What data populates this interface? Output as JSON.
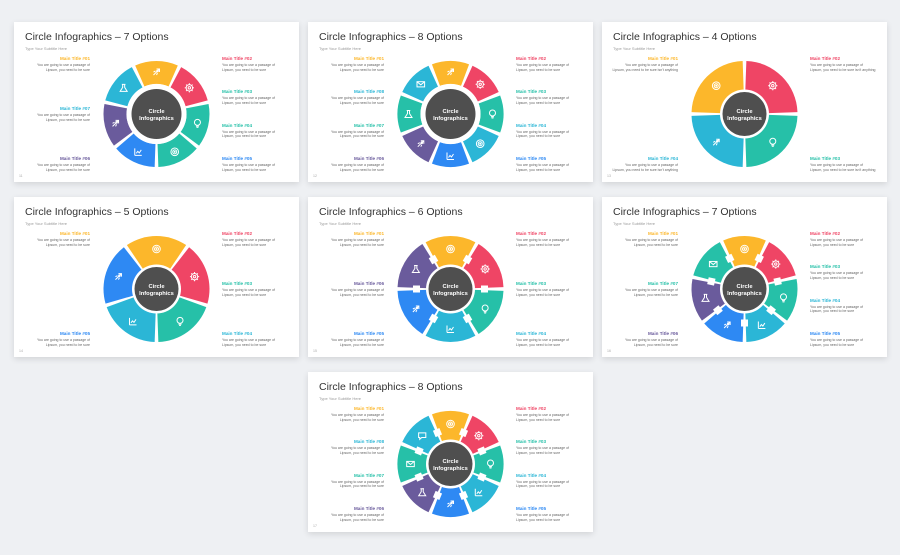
{
  "colors": {
    "yellow": "#fcb72b",
    "red": "#ef4565",
    "teal": "#26c0a8",
    "cyan": "#2bb6d6",
    "blue": "#2e89f3",
    "purple": "#6a5b9c",
    "center": "#4f4f4f"
  },
  "slides": [
    {
      "title": "Circle Infographics – 7 Options",
      "subtitle": "Type Your Subtitle Here",
      "page": "11",
      "center_label": "Circle\nInfographics",
      "style": "donut",
      "segments": [
        "yellow",
        "red",
        "teal",
        "teal",
        "blue",
        "purple",
        "cyan"
      ],
      "icons": [
        "rocket-icon",
        "gear-icon",
        "lightbulb-icon",
        "target-icon",
        "chart-icon",
        "rocket-icon",
        "flask-icon"
      ],
      "labels": [
        {
          "side": "left",
          "title": "Main Title #01",
          "color": "yellow",
          "body": "You are going to use a passage of Lipsum, you need to be sure"
        },
        {
          "side": "left",
          "title": "Main Title #07",
          "color": "cyan",
          "body": "You are going to use a passage of Lipsum, you need to be sure"
        },
        {
          "side": "left",
          "title": "Main Title #06",
          "color": "purple",
          "body": "You are going to use a passage of Lipsum, you need to be sure"
        },
        {
          "side": "right",
          "title": "Main Title #02",
          "color": "red",
          "body": "You are going to use a passage of Lipsum, you need to be sure"
        },
        {
          "side": "right",
          "title": "Main Title #03",
          "color": "teal",
          "body": "You are going to use a passage of Lipsum, you need to be sure"
        },
        {
          "side": "right",
          "title": "Main Title #04",
          "color": "teal",
          "body": "You are going to use a passage of Lipsum, you need to be sure"
        },
        {
          "side": "right",
          "title": "Main Title #05",
          "color": "blue",
          "body": "You are going to use a passage of Lipsum, you need to be sure"
        }
      ]
    },
    {
      "title": "Circle Infographics – 8 Options",
      "subtitle": "Type Your Subtitle Here",
      "page": "12",
      "center_label": "Circle\nInfographics",
      "style": "donut",
      "segments": [
        "yellow",
        "red",
        "teal",
        "cyan",
        "blue",
        "purple",
        "teal",
        "cyan"
      ],
      "icons": [
        "rocket-icon",
        "gear-icon",
        "lightbulb-icon",
        "target-icon",
        "chart-icon",
        "rocket-icon",
        "flask-icon",
        "mail-icon"
      ],
      "labels": [
        {
          "side": "left",
          "title": "Main Title #01",
          "color": "yellow",
          "body": "You are going to use a passage of Lipsum, you need to be sure"
        },
        {
          "side": "left",
          "title": "Main Title #08",
          "color": "cyan",
          "body": "You are going to use a passage of Lipsum, you need to be sure"
        },
        {
          "side": "left",
          "title": "Main Title #07",
          "color": "teal",
          "body": "You are going to use a passage of Lipsum, you need to be sure"
        },
        {
          "side": "left",
          "title": "Main Title #06",
          "color": "purple",
          "body": "You are going to use a passage of Lipsum, you need to be sure"
        },
        {
          "side": "right",
          "title": "Main Title #02",
          "color": "red",
          "body": "You are going to use a passage of Lipsum, you need to be sure"
        },
        {
          "side": "right",
          "title": "Main Title #03",
          "color": "teal",
          "body": "You are going to use a passage of Lipsum, you need to be sure"
        },
        {
          "side": "right",
          "title": "Main Title #04",
          "color": "cyan",
          "body": "You are going to use a passage of Lipsum, you need to be sure"
        },
        {
          "side": "right",
          "title": "Main Title #05",
          "color": "blue",
          "body": "You are going to use a passage of Lipsum, you need to be sure"
        }
      ]
    },
    {
      "title": "Circle Infographics – 4 Options",
      "subtitle": "Type Your Subtitle Here",
      "page": "13",
      "center_label": "Circle\nInfographics",
      "style": "pie",
      "segments": [
        "red",
        "teal",
        "cyan",
        "yellow"
      ],
      "icons": [
        "gear-icon",
        "lightbulb-icon",
        "rocket-icon",
        "target-icon"
      ],
      "labels": [
        {
          "side": "left",
          "title": "Main Title #01",
          "color": "yellow",
          "body": "You are going to use a passage of Lipsum, you need to be sure isn't anything"
        },
        {
          "side": "left",
          "title": "Main Title #04",
          "color": "cyan",
          "body": "You are going to use a passage of Lipsum, you need to be sure isn't anything"
        },
        {
          "side": "right",
          "title": "Main Title #02",
          "color": "red",
          "body": "You are going to use a passage of Lipsum, you need to be sure isn't anything"
        },
        {
          "side": "right",
          "title": "Main Title #03",
          "color": "teal",
          "body": "You are going to use a passage of Lipsum, you need to be sure isn't anything"
        }
      ]
    },
    {
      "title": "Circle Infographics – 5 Options",
      "subtitle": "Type Your Subtitle Here",
      "page": "14",
      "center_label": "Circle\nInfographics",
      "style": "pie",
      "segments": [
        "yellow",
        "red",
        "teal",
        "cyan",
        "blue"
      ],
      "icons": [
        "target-icon",
        "gear-icon",
        "lightbulb-icon",
        "chart-icon",
        "rocket-icon"
      ],
      "labels": [
        {
          "side": "left",
          "title": "Main Title #01",
          "color": "yellow",
          "body": "You are going to use a passage of Lipsum, you need to be sure"
        },
        {
          "side": "left",
          "title": "Main Title #05",
          "color": "blue",
          "body": "You are going to use a passage of Lipsum, you need to be sure"
        },
        {
          "side": "right",
          "title": "Main Title #02",
          "color": "red",
          "body": "You are going to use a passage of Lipsum, you need to be sure"
        },
        {
          "side": "right",
          "title": "Main Title #03",
          "color": "teal",
          "body": "You are going to use a passage of Lipsum, you need to be sure"
        },
        {
          "side": "right",
          "title": "Main Title #04",
          "color": "cyan",
          "body": "You are going to use a passage of Lipsum, you need to be sure"
        }
      ]
    },
    {
      "title": "Circle Infographics – 6 Options",
      "subtitle": "Type Your Subtitle Here",
      "page": "15",
      "center_label": "Circle\nInfographics",
      "style": "pie-notch",
      "segments": [
        "yellow",
        "red",
        "teal",
        "cyan",
        "blue",
        "purple"
      ],
      "icons": [
        "target-icon",
        "gear-icon",
        "lightbulb-icon",
        "chart-icon",
        "rocket-icon",
        "flask-icon"
      ],
      "labels": [
        {
          "side": "left",
          "title": "Main Title #01",
          "color": "yellow",
          "body": "You are going to use a passage of Lipsum, you need to be sure"
        },
        {
          "side": "left",
          "title": "Main Title #06",
          "color": "purple",
          "body": "You are going to use a passage of Lipsum, you need to be sure"
        },
        {
          "side": "left",
          "title": "Main Title #05",
          "color": "blue",
          "body": "You are going to use a passage of Lipsum, you need to be sure"
        },
        {
          "side": "right",
          "title": "Main Title #02",
          "color": "red",
          "body": "You are going to use a passage of Lipsum, you need to be sure"
        },
        {
          "side": "right",
          "title": "Main Title #03",
          "color": "teal",
          "body": "You are going to use a passage of Lipsum, you need to be sure"
        },
        {
          "side": "right",
          "title": "Main Title #04",
          "color": "cyan",
          "body": "You are going to use a passage of Lipsum, you need to be sure"
        }
      ]
    },
    {
      "title": "Circle Infographics – 7 Options",
      "subtitle": "Type Your Subtitle Here",
      "page": "16",
      "center_label": "Circle\nInfographics",
      "style": "pie-notch",
      "segments": [
        "yellow",
        "red",
        "teal",
        "cyan",
        "blue",
        "purple",
        "teal"
      ],
      "icons": [
        "target-icon",
        "gear-icon",
        "lightbulb-icon",
        "chart-icon",
        "rocket-icon",
        "flask-icon",
        "mail-icon"
      ],
      "labels": [
        {
          "side": "left",
          "title": "Main Title #01",
          "color": "yellow",
          "body": "You are going to use a passage of Lipsum, you need to be sure"
        },
        {
          "side": "left",
          "title": "Main Title #07",
          "color": "teal",
          "body": "You are going to use a passage of Lipsum, you need to be sure"
        },
        {
          "side": "left",
          "title": "Main Title #06",
          "color": "purple",
          "body": "You are going to use a passage of Lipsum, you need to be sure"
        },
        {
          "side": "right",
          "title": "Main Title #02",
          "color": "red",
          "body": "You are going to use a passage of Lipsum, you need to be sure"
        },
        {
          "side": "right",
          "title": "Main Title #03",
          "color": "teal",
          "body": "You are going to use a passage of Lipsum, you need to be sure"
        },
        {
          "side": "right",
          "title": "Main Title #04",
          "color": "cyan",
          "body": "You are going to use a passage of Lipsum, you need to be sure"
        },
        {
          "side": "right",
          "title": "Main Title #05",
          "color": "blue",
          "body": "You are going to use a passage of Lipsum, you need to be sure"
        }
      ]
    },
    {
      "title": "Circle Infographics – 8 Options",
      "subtitle": "Type Your Subtitle Here",
      "page": "17",
      "center_label": "Circle\nInfographics",
      "style": "pie-notch",
      "segments": [
        "yellow",
        "red",
        "teal",
        "cyan",
        "blue",
        "purple",
        "teal",
        "cyan"
      ],
      "icons": [
        "target-icon",
        "gear-icon",
        "lightbulb-icon",
        "chart-icon",
        "rocket-icon",
        "flask-icon",
        "mail-icon",
        "chat-icon"
      ],
      "labels": [
        {
          "side": "left",
          "title": "Main Title #01",
          "color": "yellow",
          "body": "You are going to use a passage of Lipsum, you need to be sure"
        },
        {
          "side": "left",
          "title": "Main Title #08",
          "color": "cyan",
          "body": "You are going to use a passage of Lipsum, you need to be sure"
        },
        {
          "side": "left",
          "title": "Main Title #07",
          "color": "teal",
          "body": "You are going to use a passage of Lipsum, you need to be sure"
        },
        {
          "side": "left",
          "title": "Main Title #06",
          "color": "purple",
          "body": "You are going to use a passage of Lipsum, you need to be sure"
        },
        {
          "side": "right",
          "title": "Main Title #02",
          "color": "red",
          "body": "You are going to use a passage of Lipsum, you need to be sure"
        },
        {
          "side": "right",
          "title": "Main Title #03",
          "color": "teal",
          "body": "You are going to use a passage of Lipsum, you need to be sure"
        },
        {
          "side": "right",
          "title": "Main Title #04",
          "color": "cyan",
          "body": "You are going to use a passage of Lipsum, you need to be sure"
        },
        {
          "side": "right",
          "title": "Main Title #05",
          "color": "blue",
          "body": "You are going to use a passage of Lipsum, you need to be sure"
        }
      ]
    }
  ]
}
